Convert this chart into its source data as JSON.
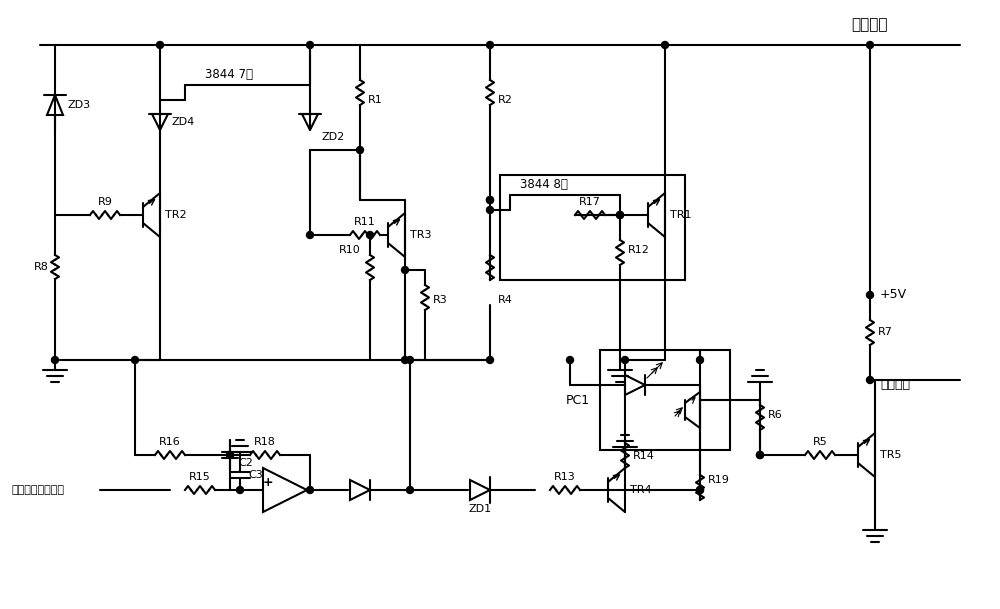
{
  "title": "驱动电源",
  "label_bus": "母线电流采样输入",
  "label_protect": "保护输出",
  "label_3844_7": "3844 7脚",
  "label_3844_8": "3844 8脚",
  "label_pc1": "PC1",
  "label_5v": "+5V",
  "bg_color": "#ffffff",
  "line_color": "#000000",
  "line_width": 1.5,
  "component_lw": 1.5
}
